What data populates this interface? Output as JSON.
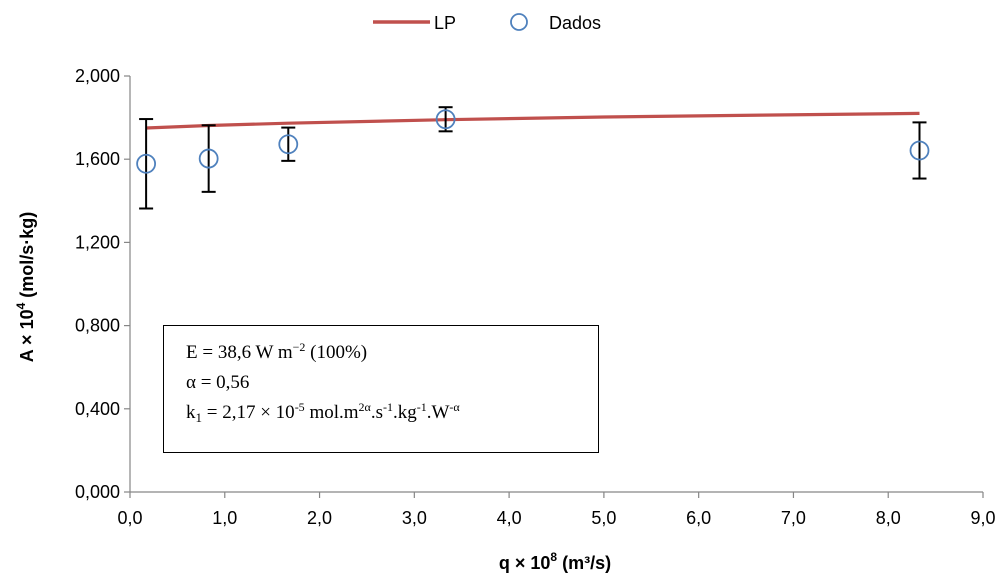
{
  "chart_data": {
    "type": "scatter",
    "xlabel": "q  × 10",
    "xlabel_sup": "8",
    "xlabel_tail": " (m³/s)",
    "ylabel": "A × 10",
    "ylabel_sup": "4",
    "ylabel_tail": " (mol/s·kg)",
    "xlim": [
      0,
      9
    ],
    "ylim": [
      0,
      2
    ],
    "x_ticks": [
      "0,0",
      "1,0",
      "2,0",
      "3,0",
      "4,0",
      "5,0",
      "6,0",
      "7,0",
      "8,0",
      "9,0"
    ],
    "y_ticks": [
      "0,000",
      "0,400",
      "0,800",
      "1,200",
      "1,600",
      "2,000"
    ],
    "legend_position": "top-center",
    "series": [
      {
        "name": "LP",
        "kind": "line",
        "color": "#C0504D",
        "points": [
          [
            0.17,
            1.75
          ],
          [
            0.83,
            1.762
          ],
          [
            1.67,
            1.773
          ],
          [
            3.33,
            1.79
          ],
          [
            5.0,
            1.803
          ],
          [
            6.67,
            1.812
          ],
          [
            8.33,
            1.82
          ]
        ]
      },
      {
        "name": "Dados",
        "kind": "scatter",
        "color": "#4F81BD",
        "points": [
          {
            "x": 0.17,
            "y": 1.578,
            "err": 0.215
          },
          {
            "x": 0.83,
            "y": 1.603,
            "err": 0.16
          },
          {
            "x": 1.67,
            "y": 1.672,
            "err": 0.08
          },
          {
            "x": 3.33,
            "y": 1.792,
            "err": 0.058
          },
          {
            "x": 8.33,
            "y": 1.642,
            "err": 0.135
          }
        ]
      }
    ],
    "annotation": {
      "line1_a": "E = 38,6 W m",
      "line1_sup": "−2",
      "line1_b": " (100%)",
      "line2": "α = 0,56",
      "line3_a": "k",
      "line3_sub": "1",
      "line3_b": " = 2,17 × 10",
      "line3_sup1": "-5",
      "line3_c": " mol.m",
      "line3_sup2": "2α",
      "line3_d": ".s",
      "line3_sup3": "-1",
      "line3_e": ".kg",
      "line3_sup4": "-1",
      "line3_f": ".W",
      "line3_sup5": "-α"
    }
  }
}
